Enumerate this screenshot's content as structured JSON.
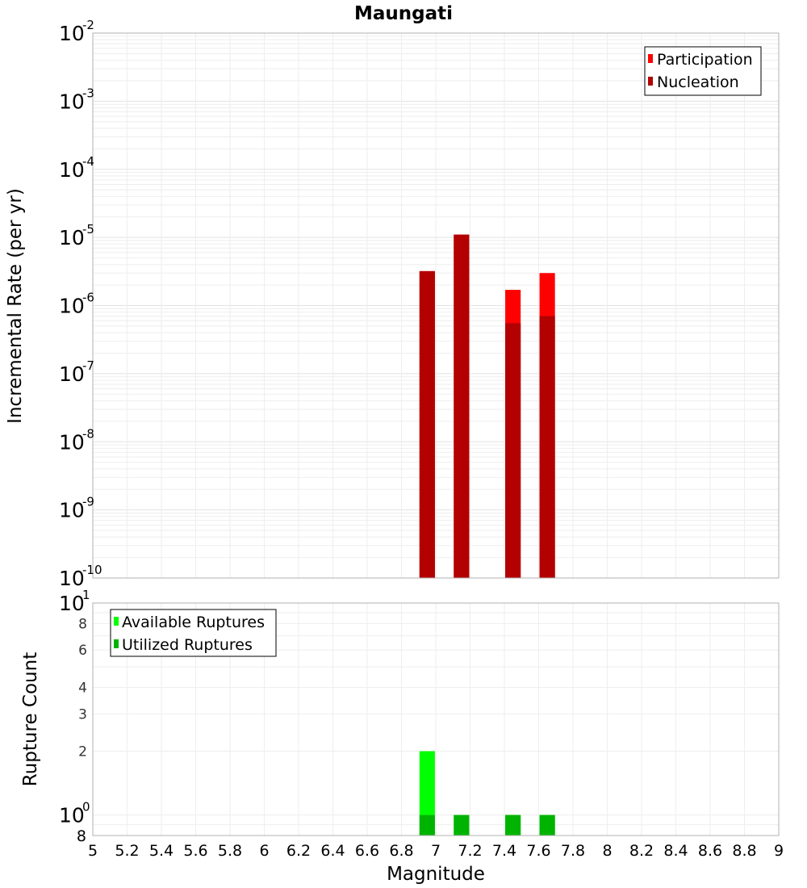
{
  "chart_data": [
    {
      "type": "bar",
      "title": "Maungati",
      "ylabel": "Incremental Rate (per yr)",
      "yscale": "log",
      "ylim": [
        1e-10,
        0.01
      ],
      "xlim": [
        5,
        9
      ],
      "grid": true,
      "legend_position": "top-right",
      "series": [
        {
          "name": "Participation",
          "color": "#ff0000",
          "points": [
            {
              "x": 6.95,
              "y": 3.2e-06
            },
            {
              "x": 7.15,
              "y": 1.1e-05
            },
            {
              "x": 7.45,
              "y": 1.7e-06
            },
            {
              "x": 7.65,
              "y": 3e-06
            }
          ]
        },
        {
          "name": "Nucleation",
          "color": "#b30000",
          "points": [
            {
              "x": 6.95,
              "y": 3.2e-06
            },
            {
              "x": 7.15,
              "y": 1.1e-05
            },
            {
              "x": 7.45,
              "y": 5.5e-07
            },
            {
              "x": 7.65,
              "y": 7e-07
            }
          ]
        }
      ]
    },
    {
      "type": "bar",
      "xlabel": "Magnitude",
      "ylabel": "Rupture Count",
      "yscale": "log",
      "ylim": [
        0.8,
        10
      ],
      "xlim": [
        5,
        9
      ],
      "grid": true,
      "legend_position": "top-left",
      "series": [
        {
          "name": "Available Ruptures",
          "color": "#00ff00",
          "points": [
            {
              "x": 6.95,
              "y": 2
            },
            {
              "x": 7.15,
              "y": 1
            },
            {
              "x": 7.45,
              "y": 1
            },
            {
              "x": 7.65,
              "y": 1
            }
          ]
        },
        {
          "name": "Utilized Ruptures",
          "color": "#00b300",
          "points": [
            {
              "x": 6.95,
              "y": 1
            },
            {
              "x": 7.15,
              "y": 1
            },
            {
              "x": 7.45,
              "y": 1
            },
            {
              "x": 7.65,
              "y": 1
            }
          ]
        }
      ]
    }
  ],
  "top_y_ticks": [
    {
      "base": "10",
      "exp": "-2",
      "value": 0.01
    },
    {
      "base": "10",
      "exp": "-3",
      "value": 0.001
    },
    {
      "base": "10",
      "exp": "-4",
      "value": 0.0001
    },
    {
      "base": "10",
      "exp": "-5",
      "value": 1e-05
    },
    {
      "base": "10",
      "exp": "-6",
      "value": 1e-06
    },
    {
      "base": "10",
      "exp": "-7",
      "value": 1e-07
    },
    {
      "base": "10",
      "exp": "-8",
      "value": 1e-08
    },
    {
      "base": "10",
      "exp": "-9",
      "value": 1e-09
    },
    {
      "base": "10",
      "exp": "-10",
      "value": 1e-10
    }
  ],
  "bottom_y_ticks": [
    {
      "label": "8",
      "value": 8,
      "minor": true
    },
    {
      "label": "6",
      "value": 6,
      "minor": true
    },
    {
      "label": "4",
      "value": 4,
      "minor": true
    },
    {
      "label": "3",
      "value": 3,
      "minor": true
    },
    {
      "label": "2",
      "value": 2,
      "minor": true
    },
    {
      "label": "8",
      "value": 0.8,
      "minor": false
    }
  ],
  "bottom_y_major_ticks": [
    {
      "base": "10",
      "exp": "1",
      "value": 10
    },
    {
      "base": "10",
      "exp": "0",
      "value": 1
    }
  ],
  "x_ticks": [
    "5",
    "5.2",
    "5.4",
    "5.6",
    "5.8",
    "6",
    "6.2",
    "6.4",
    "6.6",
    "6.8",
    "7",
    "7.2",
    "7.4",
    "7.6",
    "7.8",
    "8",
    "8.2",
    "8.4",
    "8.6",
    "8.8",
    "9"
  ],
  "bar_width_mag": 0.09
}
